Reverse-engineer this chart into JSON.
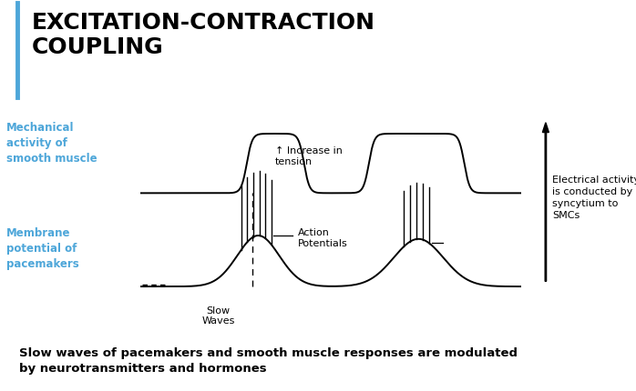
{
  "title": "EXCITATION-CONTRACTION\nCOUPLING",
  "title_color": "#000000",
  "title_fontsize": 18,
  "title_fontweight": "bold",
  "background_color": "#ffffff",
  "cyan_color": "#4da6d9",
  "label_mechanical": "Mechanical\nactivity of\nsmooth muscle",
  "label_membrane": "Membrane\npotential of\npacemakers",
  "label_increase": "↑ Increase in\ntension",
  "label_action": "Action\nPotentials",
  "label_slow": "Slow\nWaves",
  "label_electrical": "Electrical activity\nis conducted by\nsyncytium to\nSMCs",
  "footer": "Slow waves of pacemakers and smooth muscle responses are modulated\nby neurotransmitters and hormones",
  "footer_fontsize": 9.5,
  "footer_fontweight": "bold"
}
